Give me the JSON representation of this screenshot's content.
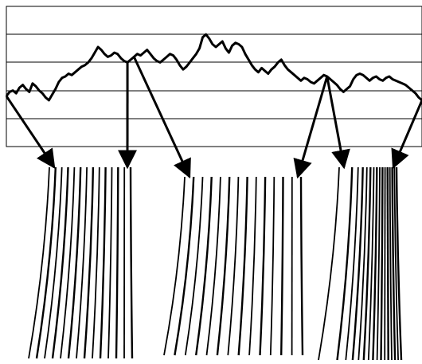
{
  "diagram": {
    "type": "time-series with zoomed segment renderings",
    "chart_data": {
      "type": "line",
      "grid": true,
      "series": [
        {
          "values": [
            0.36,
            0.39,
            0.4,
            0.38,
            0.42,
            0.44,
            0.41,
            0.39,
            0.45,
            0.43,
            0.4,
            0.38,
            0.35,
            0.33,
            0.37,
            0.41,
            0.46,
            0.49,
            0.5,
            0.52,
            0.51,
            0.53,
            0.55,
            0.57,
            0.58,
            0.6,
            0.63,
            0.67,
            0.71,
            0.69,
            0.66,
            0.64,
            0.65,
            0.67,
            0.66,
            0.63,
            0.61,
            0.6,
            0.62,
            0.64,
            0.66,
            0.65,
            0.67,
            0.69,
            0.66,
            0.63,
            0.61,
            0.6,
            0.62,
            0.64,
            0.66,
            0.65,
            0.62,
            0.58,
            0.55,
            0.57,
            0.6,
            0.63,
            0.66,
            0.7,
            0.78,
            0.8,
            0.77,
            0.73,
            0.71,
            0.73,
            0.75,
            0.7,
            0.67,
            0.72,
            0.74,
            0.73,
            0.71,
            0.66,
            0.62,
            0.58,
            0.55,
            0.53,
            0.56,
            0.54,
            0.52,
            0.55,
            0.57,
            0.6,
            0.62,
            0.58,
            0.55,
            0.53,
            0.51,
            0.49,
            0.47,
            0.49,
            0.48,
            0.46,
            0.45,
            0.47,
            0.49,
            0.51,
            0.5,
            0.48,
            0.46,
            0.44,
            0.41,
            0.39,
            0.41,
            0.43,
            0.48,
            0.51,
            0.52,
            0.51,
            0.49,
            0.47,
            0.49,
            0.5,
            0.48,
            0.47,
            0.49,
            0.5,
            0.48,
            0.47,
            0.46,
            0.45,
            0.44,
            0.42,
            0.4,
            0.38,
            0.35,
            0.33
          ]
        }
      ],
      "callouts": [
        {
          "from_index": 0,
          "to_panel": 0,
          "side": "left"
        },
        {
          "from_index": 37,
          "to_panel": 0,
          "side": "right"
        },
        {
          "from_index": 39,
          "to_panel": 1,
          "side": "left"
        },
        {
          "from_index": 98,
          "to_panel": 1,
          "side": "right"
        },
        {
          "from_index": 98,
          "to_panel": 2,
          "side": "left"
        },
        {
          "from_index": 127,
          "to_panel": 2,
          "side": "right"
        }
      ]
    },
    "panels": [
      {
        "line_count": 14,
        "spread": "uniform"
      },
      {
        "line_count": 14,
        "spread": "uniform"
      },
      {
        "line_count": 16,
        "spread": "compressed-right"
      }
    ]
  }
}
